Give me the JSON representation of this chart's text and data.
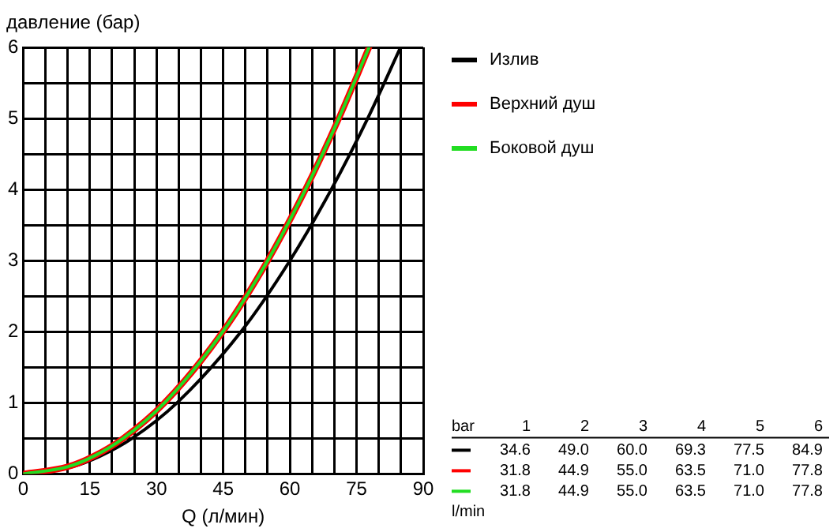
{
  "chart_data": {
    "type": "line",
    "ylabel": "давление (бар)",
    "xlabel": "Q (л/мин)",
    "xlim": [
      0,
      90
    ],
    "ylim": [
      0,
      6
    ],
    "xticks": [
      0,
      {
        "value": 5,
        "label": null
      },
      {
        "value": 10,
        "label": null
      },
      15,
      {
        "value": 20,
        "label": null
      },
      {
        "value": 25,
        "label": null
      },
      30,
      {
        "value": 35,
        "label": null
      },
      {
        "value": 40,
        "label": null
      },
      45,
      {
        "value": 50,
        "label": null
      },
      {
        "value": 55,
        "label": null
      },
      60,
      {
        "value": 65,
        "label": null
      },
      {
        "value": 70,
        "label": null
      },
      75,
      {
        "value": 80,
        "label": null
      },
      {
        "value": 85,
        "label": null
      },
      90
    ],
    "yticks": [
      0,
      {
        "value": 0.5,
        "label": null
      },
      1,
      {
        "value": 1.5,
        "label": null
      },
      2,
      {
        "value": 2.5,
        "label": null
      },
      3,
      {
        "value": 3.5,
        "label": null
      },
      4,
      {
        "value": 4.5,
        "label": null
      },
      5,
      {
        "value": 5.5,
        "label": null
      },
      6
    ],
    "grid": true,
    "legend": "right",
    "marker": "none",
    "line_style": "solid",
    "annotations": [
      "bar",
      "l/min",
      "1",
      "2",
      "3",
      "4",
      "5",
      "6",
      "34.6",
      "49.0",
      "60.0",
      "69.3",
      "77.5",
      "84.9",
      "31.8",
      "44.9",
      "55.0",
      "63.5",
      "71.0",
      "77.8",
      "31.8",
      "44.9",
      "55.0",
      "63.5",
      "71.0",
      "77.8"
    ],
    "series": [
      {
        "name": "Излив",
        "color": "#000000",
        "x": [
          0,
          11,
          17.3,
          24.5,
          34.6,
          49.0,
          60.0,
          69.3,
          77.5,
          84.9
        ],
        "values": [
          0,
          0.1,
          0.25,
          0.5,
          1,
          2,
          3,
          4,
          5,
          6
        ]
      },
      {
        "name": "Верхний душ",
        "color": "#ff0000",
        "x": [
          0,
          10,
          15.9,
          22.5,
          31.8,
          44.9,
          55.0,
          63.5,
          71.0,
          77.8
        ],
        "values": [
          0,
          0.1,
          0.25,
          0.5,
          1,
          2,
          3,
          4,
          5,
          6
        ]
      },
      {
        "name": "Боковой душ",
        "color": "#22dd22",
        "x": [
          0,
          10,
          15.9,
          22.5,
          31.8,
          44.9,
          55.0,
          63.5,
          71.0,
          77.8
        ],
        "values": [
          0,
          0.1,
          0.25,
          0.5,
          1,
          2,
          3,
          4,
          5,
          6
        ]
      }
    ]
  }
}
